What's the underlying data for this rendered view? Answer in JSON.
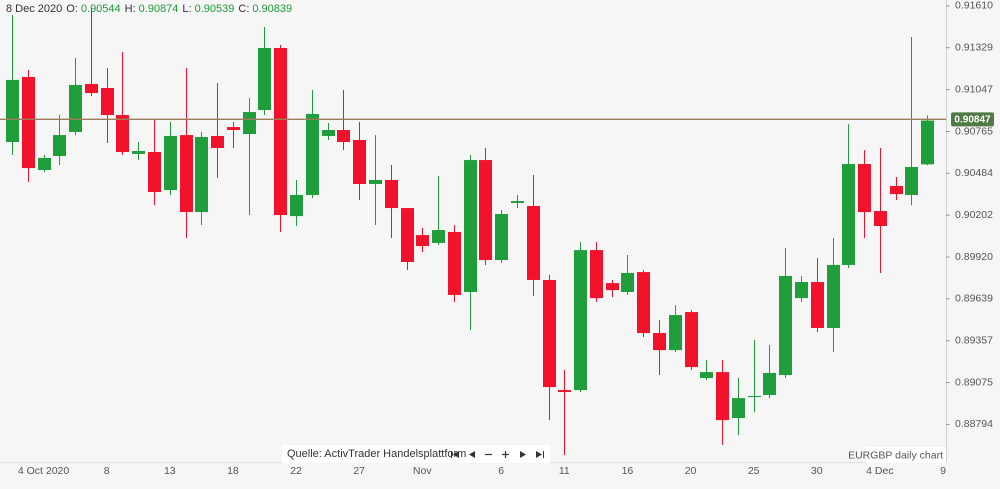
{
  "chart_data": {
    "type": "candlestick",
    "header": {
      "date": "8 Dec 2020",
      "labels": [
        "O:",
        "H:",
        "L:",
        "C:"
      ]
    },
    "annotations": [
      "Quelle: ActivTrader Handelsplattform",
      "EURGBP daily chart"
    ],
    "categories": [
      null,
      null,
      "4 Oct 2020",
      null,
      null,
      null,
      "8",
      null,
      null,
      null,
      "13",
      null,
      null,
      null,
      "18",
      null,
      null,
      null,
      "22",
      null,
      null,
      null,
      "27",
      null,
      null,
      null,
      "Nov",
      null,
      null,
      null,
      null,
      "6",
      null,
      null,
      null,
      "11",
      null,
      null,
      null,
      "16",
      null,
      null,
      null,
      "20",
      null,
      null,
      null,
      "25",
      null,
      null,
      null,
      "30",
      null,
      null,
      null,
      "4 Dec",
      null,
      null,
      null,
      "9"
    ],
    "open": [
      0.90694,
      0.91132,
      0.90506,
      0.906,
      0.90762,
      0.91085,
      0.91058,
      0.90876,
      0.90614,
      0.90627,
      0.90371,
      0.90741,
      0.90223,
      0.90735,
      0.90795,
      0.90748,
      0.9091,
      0.91327,
      0.90196,
      0.90338,
      0.90735,
      0.90775,
      0.90708,
      0.90412,
      0.90439,
      0.9025,
      0.90068,
      0.90015,
      0.90089,
      0.89685,
      0.90573,
      0.899,
      0.90284,
      0.90264,
      0.89766,
      0.89025,
      0.89025,
      0.89967,
      0.89745,
      0.89685,
      0.89819,
      0.89409,
      0.89294,
      0.8955,
      0.89106,
      0.89146,
      0.88837,
      0.88978,
      0.88992,
      0.89126,
      0.89644,
      0.89752,
      0.89443,
      0.89867,
      0.90546,
      0.9023,
      0.90398,
      0.90338,
      0.90544,
      null
    ],
    "high": [
      0.91549,
      0.91179,
      0.90607,
      0.90876,
      0.9126,
      0.91596,
      0.91192,
      0.913,
      0.90694,
      0.90842,
      0.90829,
      0.91192,
      0.90762,
      0.91091,
      0.90829,
      0.9099,
      0.91468,
      0.91347,
      0.90439,
      0.91044,
      0.90822,
      0.91044,
      0.90829,
      0.90741,
      0.9054,
      0.9025,
      0.90116,
      0.90466,
      0.90136,
      0.90607,
      0.90654,
      0.90237,
      0.90338,
      0.90472,
      0.89799,
      0.8916,
      0.90021,
      0.90021,
      0.89766,
      0.89934,
      0.89833,
      0.89496,
      0.89597,
      0.89564,
      0.89227,
      0.89227,
      0.89106,
      0.89362,
      0.89328,
      0.89981,
      0.89793,
      0.89914,
      0.90048,
      0.90815,
      0.9064,
      0.90654,
      0.90459,
      0.91401,
      0.90874,
      null
    ],
    "low": [
      0.90607,
      0.90425,
      0.90492,
      0.9054,
      0.90741,
      0.91004,
      0.90688,
      0.90607,
      0.90573,
      0.9027,
      0.90338,
      0.90048,
      0.90136,
      0.90452,
      0.90654,
      0.90203,
      0.90876,
      0.90089,
      0.90129,
      0.90317,
      0.90708,
      0.9064,
      0.90304,
      0.90136,
      0.90048,
      0.89833,
      0.89954,
      0.90001,
      0.89618,
      0.89429,
      0.89867,
      0.8988,
      0.9025,
      0.89658,
      0.88823,
      0.88588,
      0.89012,
      0.89618,
      0.89651,
      0.89665,
      0.89382,
      0.89126,
      0.89281,
      0.8916,
      0.89093,
      0.88655,
      0.88722,
      0.88877,
      0.88971,
      0.89106,
      0.89618,
      0.89416,
      0.89281,
      0.89846,
      0.90048,
      0.89813,
      0.90304,
      0.9027,
      0.90539,
      null
    ],
    "close": [
      0.91112,
      0.90519,
      0.90587,
      0.90741,
      0.91078,
      0.91024,
      0.90876,
      0.90627,
      0.90634,
      0.90358,
      0.90735,
      0.90223,
      0.90728,
      0.90654,
      0.90775,
      0.90896,
      0.91327,
      0.90203,
      0.90338,
      0.90883,
      0.90775,
      0.90694,
      0.90412,
      0.90439,
      0.9025,
      0.89887,
      0.89994,
      0.90102,
      0.89665,
      0.90573,
      0.899,
      0.9021,
      0.90297,
      0.89766,
      0.89045,
      0.89012,
      0.89967,
      0.89644,
      0.89698,
      0.89813,
      0.89409,
      0.89294,
      0.8953,
      0.8918,
      0.89146,
      0.88823,
      0.88971,
      0.88985,
      0.8914,
      0.89793,
      0.89752,
      0.89443,
      0.89867,
      0.90546,
      0.90223,
      0.90129,
      0.90344,
      0.90526,
      0.90839,
      null
    ],
    "up_color": "#1f9e3b",
    "down_color": "#f2122b",
    "last_price": 0.90847,
    "last_price_color": "#9b7d58",
    "last_price_box_color": "#4f7a45",
    "ylim": [
      0.88541,
      0.9165
    ],
    "yticks": [
      {
        "value": 0.9161,
        "label": "0.91610"
      },
      0.91329,
      0.91047,
      0.90765,
      0.90484,
      0.90202,
      {
        "value": 0.8992,
        "label": "0.89920"
      },
      0.89639,
      0.89357,
      0.89075,
      0.88794
    ],
    "grid": false
  }
}
